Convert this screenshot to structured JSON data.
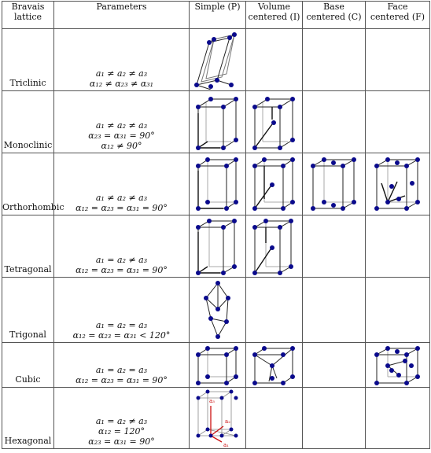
{
  "headers": {
    "system": [
      "Bravais",
      "lattice"
    ],
    "parameters": "Parameters",
    "simple": "Simple (P)",
    "volume": [
      "Volume",
      "centered (I)"
    ],
    "base": [
      "Base",
      "centered (C)"
    ],
    "face": [
      "Face",
      "centered (F)"
    ]
  },
  "rows": [
    {
      "system": "Triclinic",
      "params": [
        "a₁ ≠ a₂ ≠ a₃",
        "α₁₂ ≠ α₂₃ ≠ α₃₁"
      ]
    },
    {
      "system": "Monoclinic",
      "params": [
        "a₁ ≠ a₂ ≠ a₃",
        "α₂₃ = α₃₁ = 90°",
        "α₁₂ ≠ 90°"
      ]
    },
    {
      "system": "Orthorhombic",
      "params": [
        "a₁ ≠ a₂ ≠ a₃",
        "α₁₂ = α₂₃ = α₃₁ = 90°"
      ]
    },
    {
      "system": "Tetragonal",
      "params": [
        "a₁ = a₂ ≠ a₃",
        "α₁₂ = α₂₃ = α₃₁ = 90°"
      ]
    },
    {
      "system": "Trigonal",
      "params": [
        "a₁ = a₂ = a₃",
        "α₁₂ = α₂₃ = α₃₁ < 120°"
      ]
    },
    {
      "system": "Cubic",
      "params": [
        "a₁ = a₂ = a₃",
        "α₁₂ = α₂₃ = α₃₁ = 90°"
      ]
    },
    {
      "system": "Hexagonal",
      "params": [
        "a₁ = a₂ ≠ a₃",
        "α₁₂ = 120°",
        "α₂₃ = α₃₁ = 90°"
      ]
    }
  ],
  "hex_labels": {
    "a3": "a₃",
    "a2": "a₂",
    "a1": "a₁"
  },
  "colors": {
    "atom": "#0a0a8c",
    "edge": "#222222",
    "hidden": "#aaaaaa",
    "hex_vector": "#cc1111"
  }
}
